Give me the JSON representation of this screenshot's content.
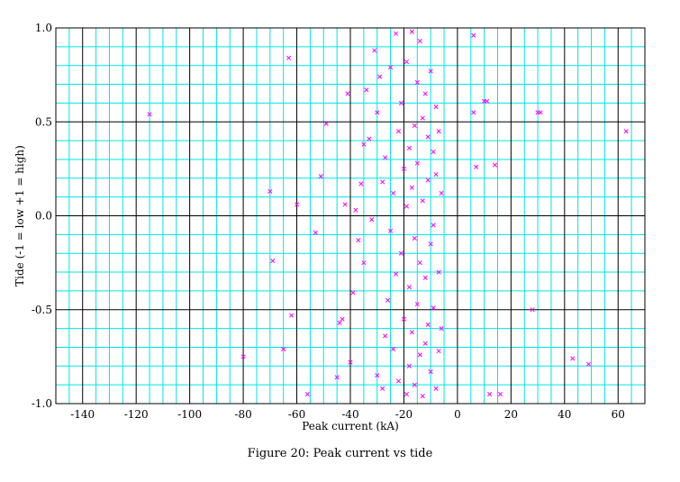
{
  "caption": "Figure 20: Peak current vs tide",
  "colors": {
    "minor_grid": "#00e5e5",
    "major_grid": "#000000",
    "marker": "#ff00ff"
  },
  "chart_data": {
    "type": "scatter",
    "title": "",
    "xlabel": "Peak current (kA)",
    "ylabel": "Tide (-1 = low +1 = high)",
    "xlim": [
      -150,
      70
    ],
    "ylim": [
      -1.0,
      1.0
    ],
    "x_ticks": [
      -140,
      -120,
      -100,
      -80,
      -60,
      -40,
      -20,
      0,
      20,
      40,
      60
    ],
    "y_ticks": [
      -1.0,
      -0.5,
      0.0,
      0.5,
      1.0
    ],
    "y_tick_labels": [
      "-1.0",
      "-0.5",
      "0.0",
      "0.5",
      "1.0"
    ],
    "grid": true,
    "marker": "x",
    "series": [
      {
        "values": [
          [
            -115,
            0.54
          ],
          [
            -80,
            -0.75
          ],
          [
            -70,
            0.13
          ],
          [
            -69,
            -0.24
          ],
          [
            -65,
            -0.71
          ],
          [
            -63,
            0.84
          ],
          [
            -62,
            -0.53
          ],
          [
            -60,
            0.06
          ],
          [
            -56,
            -0.95
          ],
          [
            -53,
            -0.09
          ],
          [
            -51,
            0.21
          ],
          [
            -49,
            0.49
          ],
          [
            -45,
            -0.86
          ],
          [
            -44,
            -0.57
          ],
          [
            -43,
            -0.55
          ],
          [
            -42,
            0.06
          ],
          [
            -41,
            0.65
          ],
          [
            -40,
            -0.78
          ],
          [
            -39,
            -0.41
          ],
          [
            -38,
            0.03
          ],
          [
            -37,
            -0.13
          ],
          [
            -36,
            0.17
          ],
          [
            -35,
            -0.25
          ],
          [
            -35,
            0.38
          ],
          [
            -34,
            0.67
          ],
          [
            -33,
            0.41
          ],
          [
            -32,
            -0.02
          ],
          [
            -31,
            0.88
          ],
          [
            -30,
            0.55
          ],
          [
            -30,
            -0.85
          ],
          [
            -29,
            0.74
          ],
          [
            -28,
            -0.92
          ],
          [
            -28,
            0.18
          ],
          [
            -27,
            -0.64
          ],
          [
            -27,
            0.31
          ],
          [
            -26,
            -0.45
          ],
          [
            -25,
            0.79
          ],
          [
            -25,
            -0.08
          ],
          [
            -24,
            0.12
          ],
          [
            -24,
            -0.71
          ],
          [
            -23,
            0.97
          ],
          [
            -23,
            -0.31
          ],
          [
            -22,
            0.45
          ],
          [
            -22,
            -0.88
          ],
          [
            -21,
            0.6
          ],
          [
            -21,
            -0.2
          ],
          [
            -20,
            0.25
          ],
          [
            -20,
            -0.55
          ],
          [
            -19,
            0.82
          ],
          [
            -19,
            -0.95
          ],
          [
            -19,
            0.05
          ],
          [
            -18,
            0.36
          ],
          [
            -18,
            -0.38
          ],
          [
            -18,
            -0.8
          ],
          [
            -17,
            0.98
          ],
          [
            -17,
            0.15
          ],
          [
            -17,
            -0.62
          ],
          [
            -16,
            0.48
          ],
          [
            -16,
            -0.12
          ],
          [
            -16,
            -0.9
          ],
          [
            -15,
            0.71
          ],
          [
            -15,
            0.28
          ],
          [
            -15,
            -0.47
          ],
          [
            -14,
            0.93
          ],
          [
            -14,
            -0.25
          ],
          [
            -14,
            -0.74
          ],
          [
            -13,
            0.52
          ],
          [
            -13,
            0.08
          ],
          [
            -13,
            -0.96
          ],
          [
            -12,
            0.65
          ],
          [
            -12,
            -0.33
          ],
          [
            -12,
            -0.68
          ],
          [
            -11,
            0.42
          ],
          [
            -11,
            0.19
          ],
          [
            -11,
            -0.58
          ],
          [
            -10,
            0.77
          ],
          [
            -10,
            -0.15
          ],
          [
            -10,
            -0.83
          ],
          [
            -9,
            0.34
          ],
          [
            -9,
            -0.05
          ],
          [
            -9,
            -0.49
          ],
          [
            -8,
            0.58
          ],
          [
            -8,
            0.22
          ],
          [
            -8,
            -0.92
          ],
          [
            -7,
            0.45
          ],
          [
            -7,
            -0.3
          ],
          [
            -7,
            -0.72
          ],
          [
            -6,
            0.12
          ],
          [
            -6,
            -0.6
          ],
          [
            6,
            0.96
          ],
          [
            6,
            0.55
          ],
          [
            7,
            0.26
          ],
          [
            10,
            0.61
          ],
          [
            11,
            0.61
          ],
          [
            12,
            -0.95
          ],
          [
            14,
            0.27
          ],
          [
            16,
            -0.95
          ],
          [
            28,
            -0.5
          ],
          [
            30,
            0.55
          ],
          [
            31,
            0.55
          ],
          [
            43,
            -0.76
          ],
          [
            49,
            -0.79
          ],
          [
            63,
            0.45
          ]
        ]
      }
    ]
  }
}
